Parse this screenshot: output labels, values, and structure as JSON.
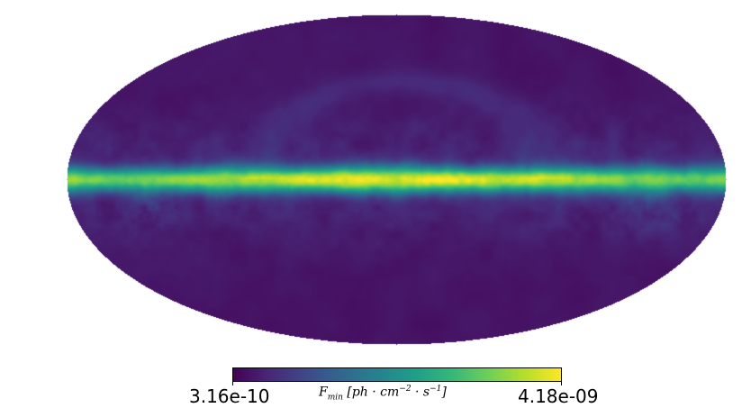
{
  "colorbar": {
    "min_label": "3.16e-10",
    "max_label": "4.18e-09",
    "quantity": "F",
    "quantity_sub": "min",
    "unit_open": " [ph · cm",
    "unit_exp1": "−2",
    "unit_mid": " · s",
    "unit_exp2": "−1",
    "unit_close": "]",
    "colormap": "viridis",
    "stops": [
      "#440154",
      "#482878",
      "#3e4989",
      "#31688e",
      "#26828e",
      "#1f9e89",
      "#35b779",
      "#6ece58",
      "#b5de2b",
      "#fde725"
    ]
  },
  "map": {
    "projection": "mollweide",
    "background_color": "#46106a",
    "plane_color": "#fde725"
  }
}
